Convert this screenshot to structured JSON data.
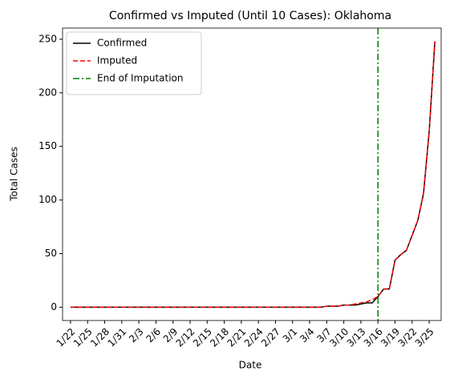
{
  "chart_data": {
    "type": "line",
    "title": "Confirmed vs Imputed (Until 10 Cases): Oklahoma",
    "x_label": "Date",
    "y_label": "Total Cases",
    "categories": [
      "1/22",
      null,
      null,
      "1/25",
      null,
      null,
      "1/28",
      null,
      null,
      "1/31",
      null,
      null,
      "2/3",
      null,
      null,
      "2/6",
      null,
      null,
      "2/9",
      null,
      null,
      "2/12",
      null,
      null,
      "2/15",
      null,
      null,
      "2/18",
      null,
      null,
      "2/21",
      null,
      null,
      "2/24",
      null,
      null,
      "2/27",
      null,
      null,
      "3/1",
      null,
      null,
      "3/4",
      null,
      null,
      "3/7",
      null,
      null,
      "3/10",
      null,
      null,
      "3/13",
      null,
      null,
      "3/16",
      null,
      null,
      "3/19",
      null,
      null,
      "3/22",
      null,
      null,
      "3/25",
      null
    ],
    "series": [
      {
        "name": "Confirmed",
        "color": "#000000",
        "dash": "solid",
        "values": [
          0,
          0,
          0,
          0,
          0,
          0,
          0,
          0,
          0,
          0,
          0,
          0,
          0,
          0,
          0,
          0,
          0,
          0,
          0,
          0,
          0,
          0,
          0,
          0,
          0,
          0,
          0,
          0,
          0,
          0,
          0,
          0,
          0,
          0,
          0,
          0,
          0,
          0,
          0,
          0,
          0,
          0,
          0,
          0,
          0,
          1,
          1,
          1,
          2,
          2,
          2,
          3,
          4,
          4,
          10,
          17,
          17,
          44,
          49,
          53,
          67,
          81,
          106,
          164,
          248
        ]
      },
      {
        "name": "Imputed",
        "color": "#ff0000",
        "dash": "dashed",
        "values": [
          0,
          0,
          0,
          0,
          0,
          0,
          0,
          0,
          0,
          0,
          0,
          0,
          0,
          0,
          0,
          0,
          0,
          0,
          0,
          0,
          0,
          0,
          0,
          0,
          0,
          0,
          0,
          0,
          0,
          0,
          0,
          0,
          0,
          0,
          0,
          0,
          0,
          0,
          0,
          0,
          0,
          0,
          0,
          0,
          0,
          1,
          1,
          1,
          2,
          2,
          3,
          4,
          5,
          7,
          10,
          17,
          17,
          44,
          49,
          53,
          67,
          81,
          106,
          164,
          248
        ]
      }
    ],
    "vline": {
      "name": "End of Imputation",
      "color": "#008000",
      "dash": "dashdot",
      "x": "3/16"
    },
    "ylim": [
      -12.4,
      260.4
    ],
    "yticks": [
      0,
      50,
      100,
      150,
      200,
      250
    ],
    "legend": "upper left"
  }
}
